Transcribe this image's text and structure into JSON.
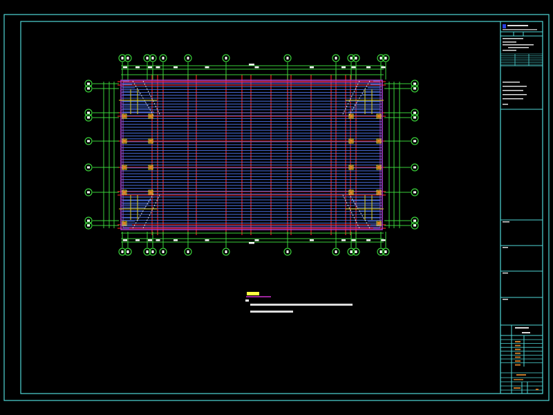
{
  "drawing": {
    "type": "CAD structural floor framing plan",
    "background": "#000000",
    "colors": {
      "frame": "#4fd8d8",
      "grid_axis": "#3ad23a",
      "beam": "#e02020",
      "joist": "#4a6fe0",
      "stair": "#b040d0",
      "column": "#e0d020",
      "text": "#ffffff",
      "title_note": "#ffff40",
      "title_underline": "#d030d0",
      "titleblock_values": "#c87a2a",
      "logo": "#2a40e0"
    },
    "icons": [
      "grid-bubble-icon",
      "column-marker-icon",
      "logo-icon"
    ]
  }
}
